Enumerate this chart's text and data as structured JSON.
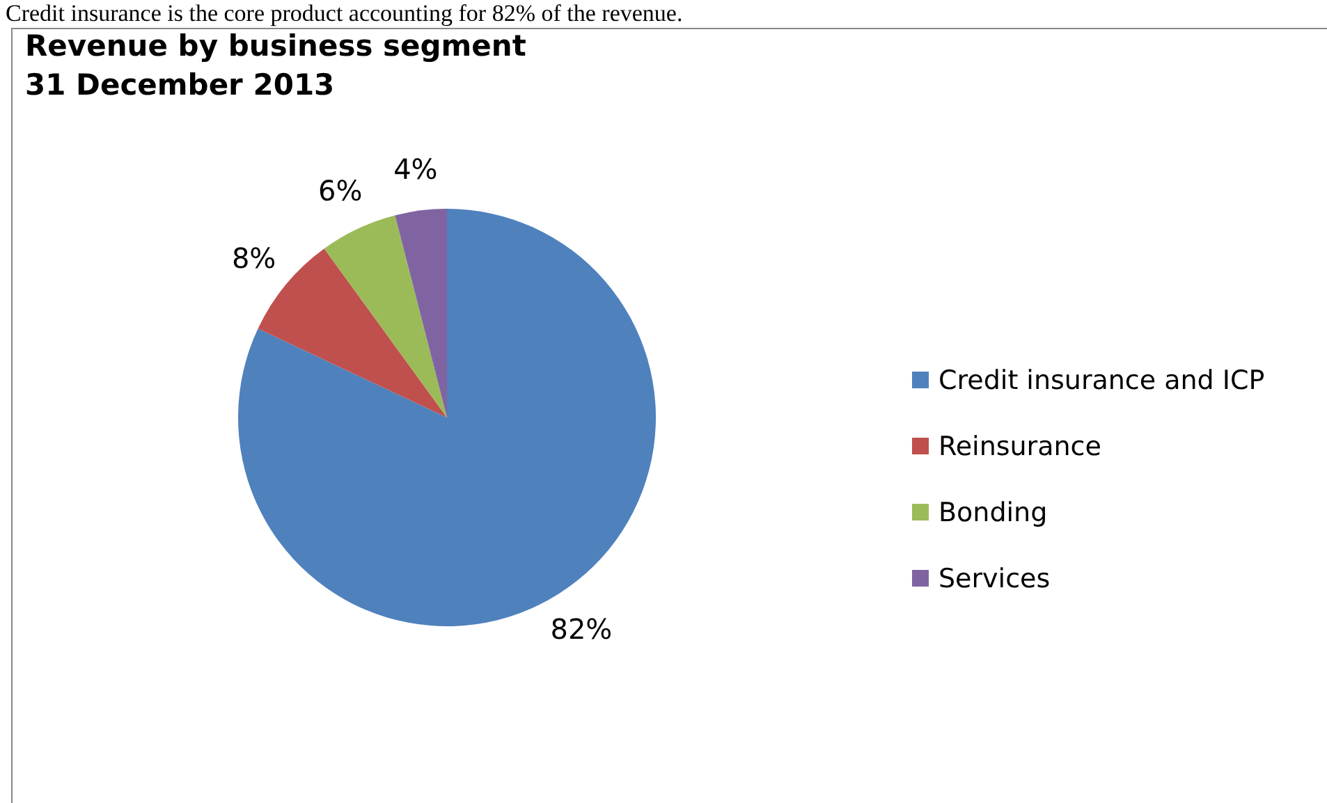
{
  "chart_data": {
    "type": "pie",
    "title": "Revenue by business segment\n31 December 2013",
    "annotations": [
      "Credit insurance is the core product accounting for 82% of the revenue."
    ],
    "categories": [
      "Credit insurance and ICP",
      "Reinsurance",
      "Bonding",
      "Services"
    ],
    "values": [
      82,
      8,
      6,
      4
    ],
    "colors": [
      "#4f81bd",
      "#c0504d",
      "#9bbb59",
      "#8064a2"
    ],
    "value_labels": [
      "82%",
      "8%",
      "6%",
      "4%"
    ],
    "legend": "right"
  }
}
